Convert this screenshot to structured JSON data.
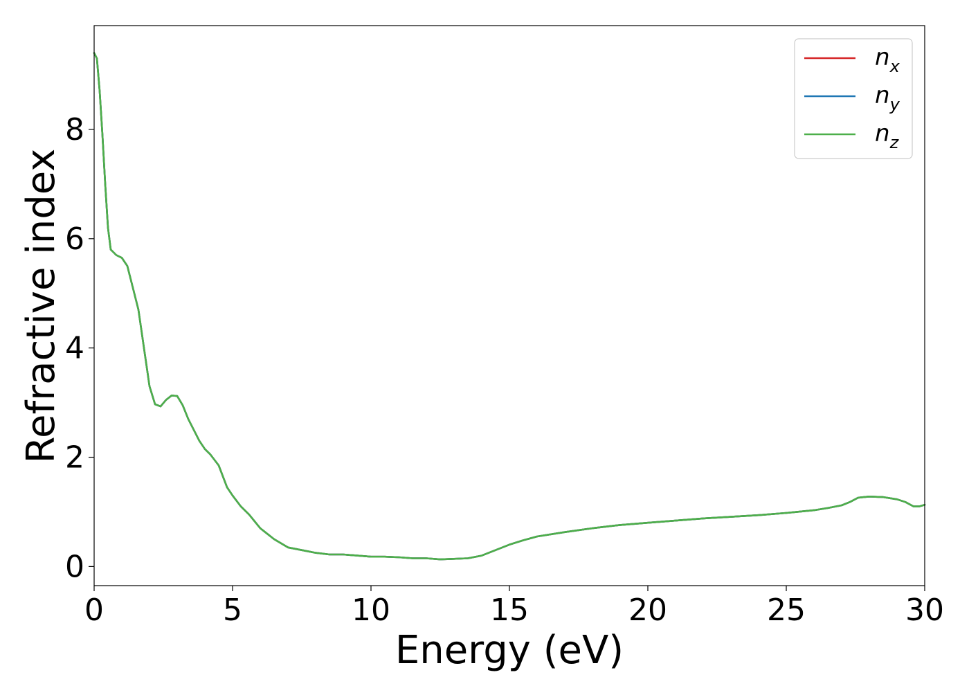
{
  "chart_data": {
    "type": "line",
    "xlabel": "Energy (eV)",
    "ylabel": "Refractive index",
    "xlim": [
      0,
      30
    ],
    "ylim": [
      -0.35,
      9.9
    ],
    "xticks": [
      "0",
      "5",
      "10",
      "15",
      "20",
      "25",
      "30"
    ],
    "yticks": [
      "0",
      "2",
      "4",
      "6",
      "8"
    ],
    "grid": false,
    "legend": {
      "placement": "top-right"
    },
    "x": [
      0,
      0.1,
      0.2,
      0.3,
      0.4,
      0.5,
      0.6,
      0.7,
      0.8,
      1.0,
      1.2,
      1.4,
      1.6,
      1.8,
      2.0,
      2.2,
      2.4,
      2.6,
      2.8,
      3.0,
      3.2,
      3.4,
      3.6,
      3.8,
      4.0,
      4.2,
      4.5,
      4.8,
      5.0,
      5.3,
      5.6,
      6.0,
      6.5,
      7.0,
      7.5,
      8.0,
      8.5,
      9.0,
      9.5,
      10.0,
      10.5,
      11.0,
      11.5,
      12.0,
      12.5,
      13.0,
      13.5,
      14.0,
      14.5,
      15.0,
      15.5,
      16.0,
      17.0,
      18.0,
      19.0,
      20.0,
      21.0,
      22.0,
      23.0,
      24.0,
      25.0,
      26.0,
      26.5,
      27.0,
      27.3,
      27.6,
      28.0,
      28.5,
      29.0,
      29.3,
      29.6,
      29.8,
      30.0
    ],
    "series": [
      {
        "name": "x",
        "color": "#d62728",
        "values": [
          9.4,
          9.3,
          8.7,
          7.9,
          7.0,
          6.2,
          5.8,
          5.75,
          5.7,
          5.65,
          5.5,
          5.1,
          4.7,
          4.0,
          3.3,
          2.97,
          2.93,
          3.05,
          3.13,
          3.12,
          2.95,
          2.7,
          2.5,
          2.3,
          2.15,
          2.05,
          1.85,
          1.45,
          1.3,
          1.1,
          0.95,
          0.7,
          0.5,
          0.35,
          0.3,
          0.25,
          0.22,
          0.22,
          0.2,
          0.18,
          0.18,
          0.17,
          0.15,
          0.15,
          0.13,
          0.14,
          0.15,
          0.2,
          0.3,
          0.4,
          0.48,
          0.55,
          0.63,
          0.7,
          0.76,
          0.8,
          0.84,
          0.88,
          0.91,
          0.94,
          0.98,
          1.03,
          1.07,
          1.12,
          1.18,
          1.26,
          1.28,
          1.27,
          1.23,
          1.18,
          1.1,
          1.1,
          1.13
        ]
      },
      {
        "name": "y",
        "color": "#1f77b4",
        "values": [
          9.4,
          9.3,
          8.7,
          7.9,
          7.0,
          6.2,
          5.8,
          5.75,
          5.7,
          5.65,
          5.5,
          5.1,
          4.7,
          4.0,
          3.3,
          2.97,
          2.93,
          3.05,
          3.13,
          3.12,
          2.95,
          2.7,
          2.5,
          2.3,
          2.15,
          2.05,
          1.85,
          1.45,
          1.3,
          1.1,
          0.95,
          0.7,
          0.5,
          0.35,
          0.3,
          0.25,
          0.22,
          0.22,
          0.2,
          0.18,
          0.18,
          0.17,
          0.15,
          0.15,
          0.13,
          0.14,
          0.15,
          0.2,
          0.3,
          0.4,
          0.48,
          0.55,
          0.63,
          0.7,
          0.76,
          0.8,
          0.84,
          0.88,
          0.91,
          0.94,
          0.98,
          1.03,
          1.07,
          1.12,
          1.18,
          1.26,
          1.28,
          1.27,
          1.23,
          1.18,
          1.1,
          1.1,
          1.13
        ]
      },
      {
        "name": "z",
        "color": "#4daf4a",
        "values": [
          9.4,
          9.3,
          8.7,
          7.9,
          7.0,
          6.2,
          5.8,
          5.75,
          5.7,
          5.65,
          5.5,
          5.1,
          4.7,
          4.0,
          3.3,
          2.97,
          2.93,
          3.05,
          3.13,
          3.12,
          2.95,
          2.7,
          2.5,
          2.3,
          2.15,
          2.05,
          1.85,
          1.45,
          1.3,
          1.1,
          0.95,
          0.7,
          0.5,
          0.35,
          0.3,
          0.25,
          0.22,
          0.22,
          0.2,
          0.18,
          0.18,
          0.17,
          0.15,
          0.15,
          0.13,
          0.14,
          0.15,
          0.2,
          0.3,
          0.4,
          0.48,
          0.55,
          0.63,
          0.7,
          0.76,
          0.8,
          0.84,
          0.88,
          0.91,
          0.94,
          0.98,
          1.03,
          1.07,
          1.12,
          1.18,
          1.26,
          1.28,
          1.27,
          1.23,
          1.18,
          1.1,
          1.1,
          1.13
        ]
      }
    ]
  }
}
